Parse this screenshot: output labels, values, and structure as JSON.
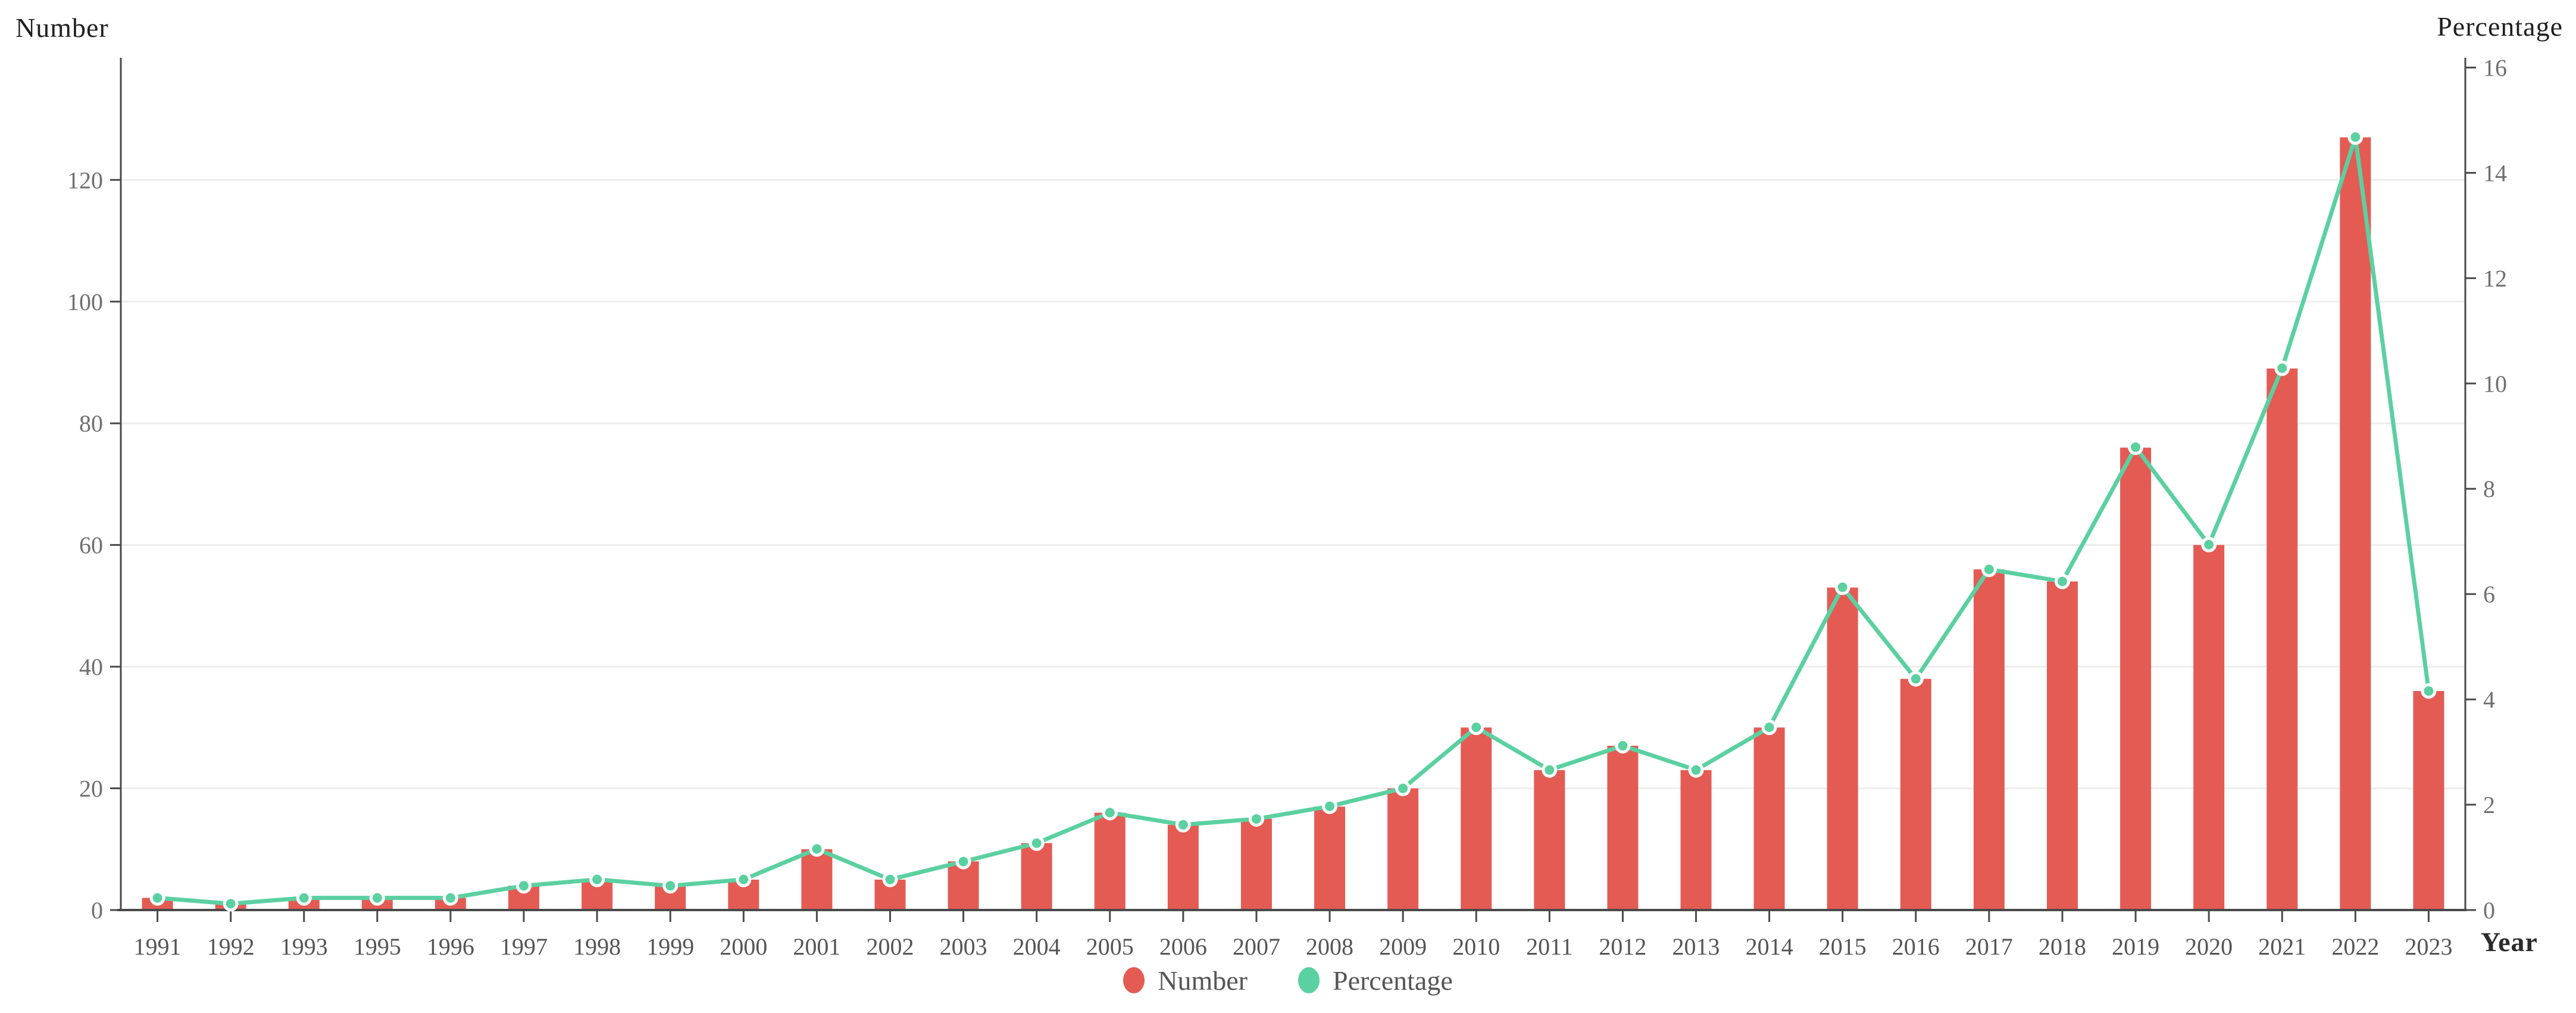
{
  "axes": {
    "left_title": "Number",
    "right_title": "Percentage",
    "x_title": "Year"
  },
  "legend": {
    "items": [
      {
        "label": "Number",
        "color": "#e45b54"
      },
      {
        "label": "Percentage",
        "color": "#5bd0a1"
      }
    ]
  },
  "colors": {
    "bar": "#e45b54",
    "line": "#5bd0a1",
    "dot_ring": "#ffffff",
    "axis_line": "#4a4a4a",
    "grid_line": "#ededed",
    "tick_label": "#6f6f6f",
    "year_label": "#555555",
    "background": "#ffffff"
  },
  "chart_data": {
    "type": "combo_bar_line_dual_axis",
    "categories": [
      "1991",
      "1992",
      "1993",
      "1995",
      "1996",
      "1997",
      "1998",
      "1999",
      "2000",
      "2001",
      "2002",
      "2003",
      "2004",
      "2005",
      "2006",
      "2007",
      "2008",
      "2009",
      "2010",
      "2011",
      "2012",
      "2013",
      "2014",
      "2015",
      "2016",
      "2017",
      "2018",
      "2019",
      "2020",
      "2021",
      "2022",
      "2023"
    ],
    "series": [
      {
        "name": "Number",
        "type": "bar",
        "yaxis": "left",
        "color": "#e45b54",
        "values": [
          2,
          1,
          2,
          2,
          2,
          4,
          5,
          4,
          5,
          10,
          5,
          8,
          11,
          16,
          14,
          15,
          17,
          20,
          30,
          23,
          27,
          23,
          30,
          53,
          38,
          56,
          54,
          76,
          60,
          89,
          127,
          36
        ]
      },
      {
        "name": "Percentage",
        "type": "line",
        "yaxis": "right",
        "color": "#5bd0a1",
        "values": [
          0.23,
          0.12,
          0.23,
          0.23,
          0.23,
          0.46,
          0.58,
          0.46,
          0.58,
          1.16,
          0.58,
          0.92,
          1.27,
          1.85,
          1.62,
          1.73,
          1.97,
          2.31,
          3.47,
          2.66,
          3.12,
          2.66,
          3.47,
          6.13,
          4.39,
          6.47,
          6.24,
          8.79,
          6.94,
          10.29,
          14.68,
          4.16
        ]
      }
    ],
    "left_axis": {
      "title": "Number",
      "ticks": [
        0,
        20,
        40,
        60,
        80,
        100,
        120
      ],
      "range": [
        0,
        140
      ]
    },
    "right_axis": {
      "title": "Percentage",
      "ticks": [
        0,
        2,
        4,
        6,
        8,
        10,
        12,
        14,
        16
      ],
      "range": [
        0,
        16.2
      ]
    },
    "x_axis": {
      "title": "Year"
    },
    "grid": "horizontal gridlines at left-axis ticks",
    "legend_position": "bottom-center"
  }
}
